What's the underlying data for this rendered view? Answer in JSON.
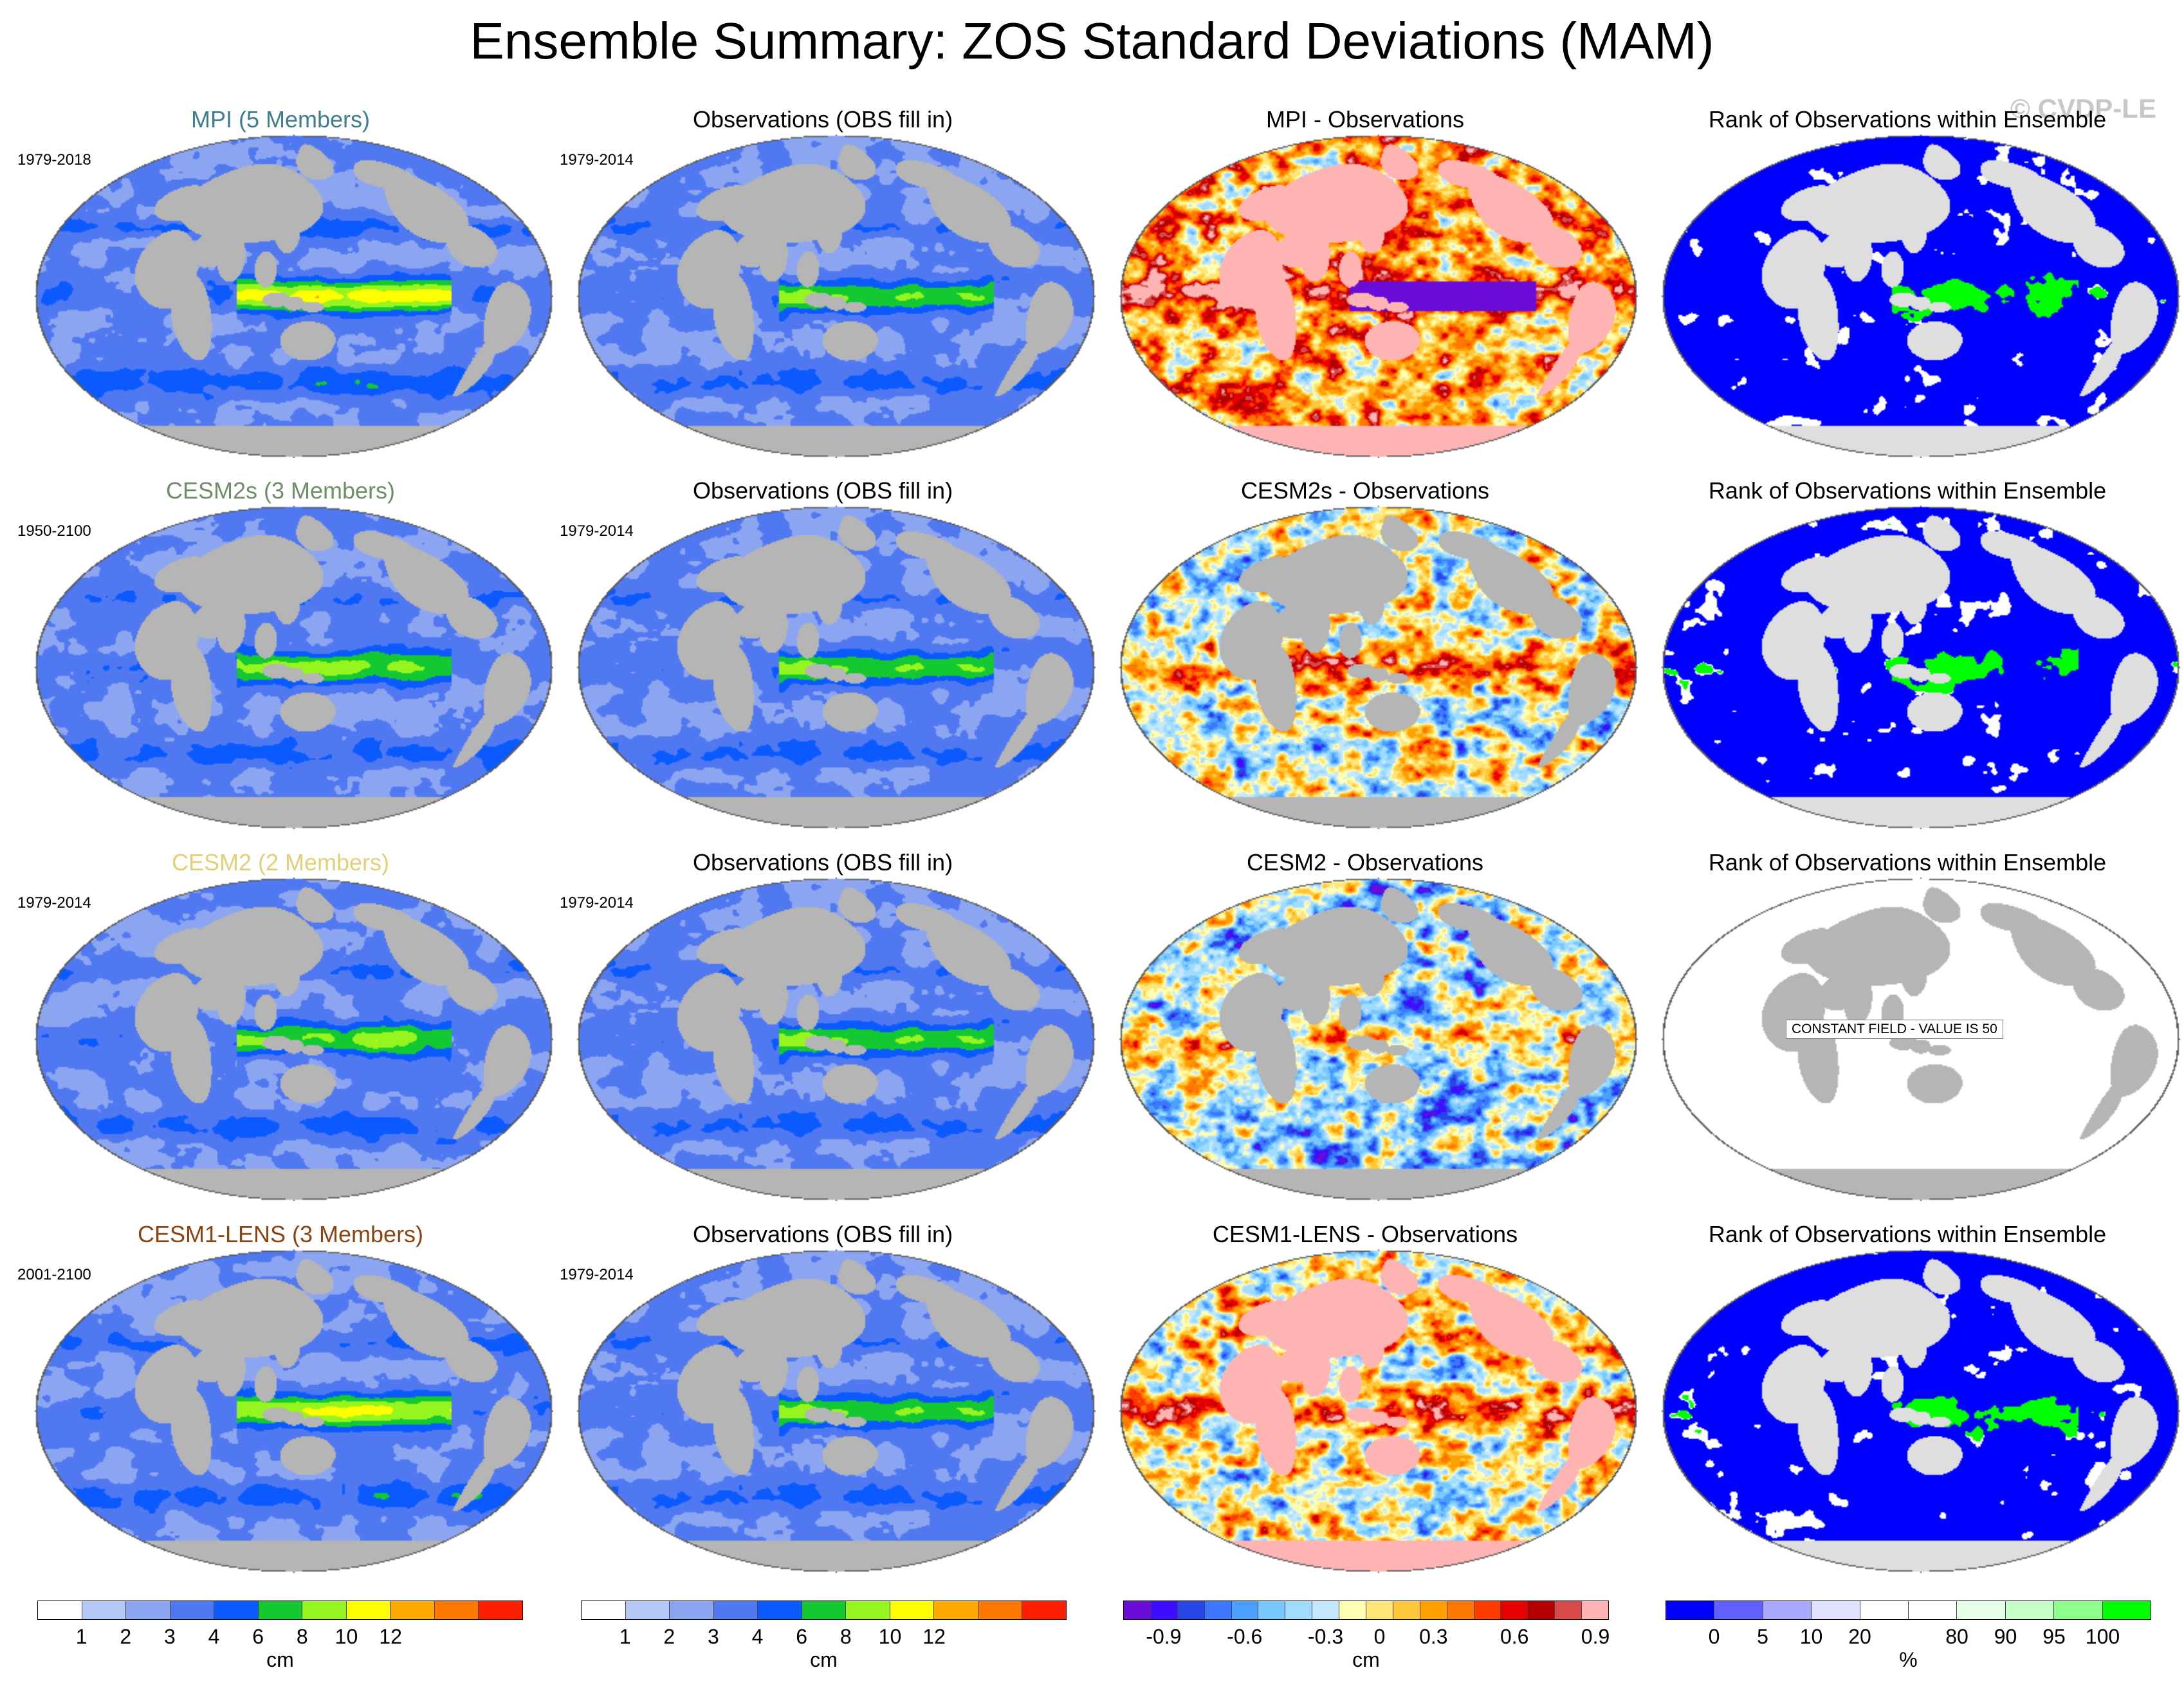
{
  "title": "Ensemble Summary: ZOS Standard Deviations (MAM)",
  "watermark": "© CVDP-LE",
  "colors": {
    "land": "#b5b5b5",
    "land_light": "#dedede",
    "ocean_bg": "#ffffff"
  },
  "rows": [
    {
      "ensemble": {
        "title": "MPI (5 Members)",
        "title_color": "#3c7d8f",
        "years": "1979-2018",
        "palette": "seq",
        "profile": "mpi"
      },
      "obs": {
        "title": "Observations (OBS fill in)",
        "years": "1979-2014",
        "palette": "seq",
        "profile": "obs"
      },
      "diff": {
        "title": "MPI - Observations",
        "palette": "div",
        "profile": "diff_mpi"
      },
      "rank": {
        "title": "Rank of Observations within Ensemble",
        "palette": "rank",
        "profile": "rank_a"
      }
    },
    {
      "ensemble": {
        "title": "CESM2s (3 Members)",
        "title_color": "#6f8f6a",
        "years": "1950-2100",
        "palette": "seq",
        "profile": "cesm2s"
      },
      "obs": {
        "title": "Observations (OBS fill in)",
        "years": "1979-2014",
        "palette": "seq",
        "profile": "obs"
      },
      "diff": {
        "title": "CESM2s - Observations",
        "palette": "div",
        "profile": "diff_cesm2s"
      },
      "rank": {
        "title": "Rank of Observations within Ensemble",
        "palette": "rank",
        "profile": "rank_b"
      }
    },
    {
      "ensemble": {
        "title": "CESM2 (2 Members)",
        "title_color": "#e3cf77",
        "years": "1979-2014",
        "palette": "seq",
        "profile": "cesm2"
      },
      "obs": {
        "title": "Observations (OBS fill in)",
        "years": "1979-2014",
        "palette": "seq",
        "profile": "obs"
      },
      "diff": {
        "title": "CESM2 - Observations",
        "palette": "div",
        "profile": "diff_cesm2"
      },
      "rank": {
        "title": "Rank of Observations within Ensemble",
        "palette": "const",
        "profile": "const",
        "note": "CONSTANT FIELD - VALUE IS 50"
      }
    },
    {
      "ensemble": {
        "title": "CESM1-LENS (3 Members)",
        "title_color": "#8b4513",
        "years": "2001-2100",
        "palette": "seq",
        "profile": "lens"
      },
      "obs": {
        "title": "Observations (OBS fill in)",
        "years": "1979-2014",
        "palette": "seq",
        "profile": "obs"
      },
      "diff": {
        "title": "CESM1-LENS - Observations",
        "palette": "div",
        "profile": "diff_lens"
      },
      "rank": {
        "title": "Rank of Observations within Ensemble",
        "palette": "rank",
        "profile": "rank_c"
      }
    }
  ],
  "colorbars": [
    {
      "name": "std",
      "colors": [
        "#ffffff",
        "#b4c8f8",
        "#8ca5f0",
        "#5078f0",
        "#0a5aff",
        "#14c832",
        "#96f51e",
        "#ffff00",
        "#ffaa00",
        "#ff7800",
        "#ff1e00"
      ],
      "ticks": [
        "1",
        "2",
        "3",
        "4",
        "6",
        "8",
        "10",
        "12"
      ],
      "unit": "cm"
    },
    {
      "name": "std_obs",
      "colors": [
        "#ffffff",
        "#b4c8f8",
        "#8ca5f0",
        "#5078f0",
        "#0a5aff",
        "#14c832",
        "#96f51e",
        "#ffff00",
        "#ffaa00",
        "#ff7800",
        "#ff1e00"
      ],
      "ticks": [
        "1",
        "2",
        "3",
        "4",
        "6",
        "8",
        "10",
        "12"
      ],
      "unit": "cm"
    },
    {
      "name": "diff",
      "colors": [
        "#6a0dd8",
        "#3c0dff",
        "#2846e6",
        "#3c78ff",
        "#4ba0ff",
        "#78c8ff",
        "#a0dcff",
        "#c4e8ff",
        "#ffffb4",
        "#ffe678",
        "#ffc83c",
        "#ffa000",
        "#ff7800",
        "#ff3c00",
        "#e60000",
        "#b40000",
        "#d84a4a",
        "#ffb4b4"
      ],
      "ticks": [
        "-0.9",
        "-0.6",
        "-0.3",
        "0",
        "0.3",
        "0.6",
        "0.9"
      ],
      "unit": "cm"
    },
    {
      "name": "rank",
      "colors": [
        "#0000ff",
        "#6060ff",
        "#a8a8ff",
        "#e0e0ff",
        "#ffffff",
        "#ffffff",
        "#e6ffe6",
        "#c8ffc8",
        "#8cff8c",
        "#00ff00"
      ],
      "ticks": [
        "0",
        "5",
        "10",
        "20",
        "80",
        "90",
        "95",
        "100"
      ],
      "unit": "%"
    }
  ]
}
